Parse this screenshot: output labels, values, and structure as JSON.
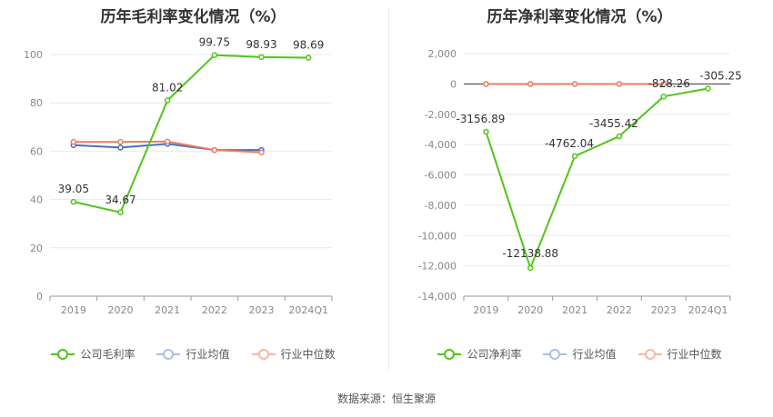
{
  "source_text": "数据来源：恒生聚源",
  "chart_data": [
    {
      "type": "line",
      "title": "历年毛利率变化情况（%）",
      "categories": [
        "2019",
        "2020",
        "2021",
        "2022",
        "2023",
        "2024Q1"
      ],
      "ylim": [
        0,
        100
      ],
      "yticks": [
        "0",
        "20",
        "40",
        "60",
        "80",
        "100"
      ],
      "ytick_values": [
        0,
        20,
        40,
        60,
        80,
        100
      ],
      "grid": true,
      "legend_position": "bottom",
      "series": [
        {
          "name": "公司毛利率",
          "color": "#52c41a",
          "values": [
            39.05,
            34.67,
            81.02,
            99.75,
            98.93,
            98.69
          ],
          "labels": [
            "39.05",
            "34.67",
            "81.02",
            "99.75",
            "98.93",
            "98.69"
          ]
        },
        {
          "name": "行业均值",
          "color": "#4472c4",
          "values": [
            62.5,
            61.5,
            63.0,
            60.5,
            60.5,
            null
          ]
        },
        {
          "name": "行业中位数",
          "color": "#ed7d5c",
          "values": [
            63.8,
            63.8,
            64.0,
            60.5,
            59.5,
            null
          ]
        }
      ]
    },
    {
      "type": "line",
      "title": "历年净利率变化情况（%）",
      "categories": [
        "2019",
        "2020",
        "2021",
        "2022",
        "2023",
        "2024Q1"
      ],
      "ylim": [
        -14000,
        2000
      ],
      "yticks": [
        "-14,000",
        "-12,000",
        "-10,000",
        "-8,000",
        "-6,000",
        "-4,000",
        "-2,000",
        "0",
        "2,000"
      ],
      "ytick_values": [
        -14000,
        -12000,
        -10000,
        -8000,
        -6000,
        -4000,
        -2000,
        0,
        2000
      ],
      "grid": true,
      "legend_position": "bottom",
      "series": [
        {
          "name": "公司净利率",
          "color": "#52c41a",
          "values": [
            -3156.89,
            -12138.88,
            -4762.04,
            -3455.42,
            -828.26,
            -305.25
          ],
          "labels": [
            "-3156.89",
            "-12138.88",
            "-4762.04",
            "-3455.42",
            "-828.26",
            "-305.25"
          ]
        },
        {
          "name": "行业均值",
          "color": "#7fa6e0",
          "values": [
            -10,
            -10,
            -8,
            -8,
            -8,
            null
          ]
        },
        {
          "name": "行业中位数",
          "color": "#ed7d5c",
          "values": [
            -5,
            -5,
            -5,
            -5,
            -5,
            null
          ]
        }
      ]
    }
  ]
}
